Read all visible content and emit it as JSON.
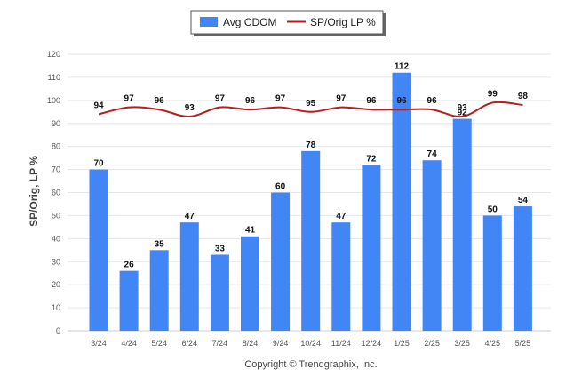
{
  "chart_data": {
    "type": "bar",
    "categories": [
      "3/24",
      "4/24",
      "5/24",
      "6/24",
      "7/24",
      "8/24",
      "9/24",
      "10/24",
      "11/24",
      "12/24",
      "1/25",
      "2/25",
      "3/25",
      "4/25",
      "5/25"
    ],
    "series": [
      {
        "name": "Avg CDOM",
        "kind": "bar",
        "color": "#4285f4",
        "values": [
          70,
          26,
          35,
          47,
          33,
          41,
          60,
          78,
          47,
          72,
          112,
          74,
          92,
          50,
          54
        ]
      },
      {
        "name": "SP/Orig LP %",
        "kind": "line",
        "color": "#b81d1d",
        "values": [
          94,
          97,
          96,
          93,
          97,
          96,
          97,
          95,
          97,
          96,
          96,
          96,
          93,
          99,
          98
        ]
      }
    ],
    "ylabel": "SP/Orig, LP %",
    "xlabel": "",
    "ylim": [
      0,
      120
    ],
    "yticks": [
      0,
      10,
      20,
      30,
      40,
      50,
      60,
      70,
      80,
      90,
      100,
      110,
      120
    ],
    "grid": true,
    "legend_position": "top-center"
  },
  "credit": "Copyright © Trendgraphix, Inc."
}
